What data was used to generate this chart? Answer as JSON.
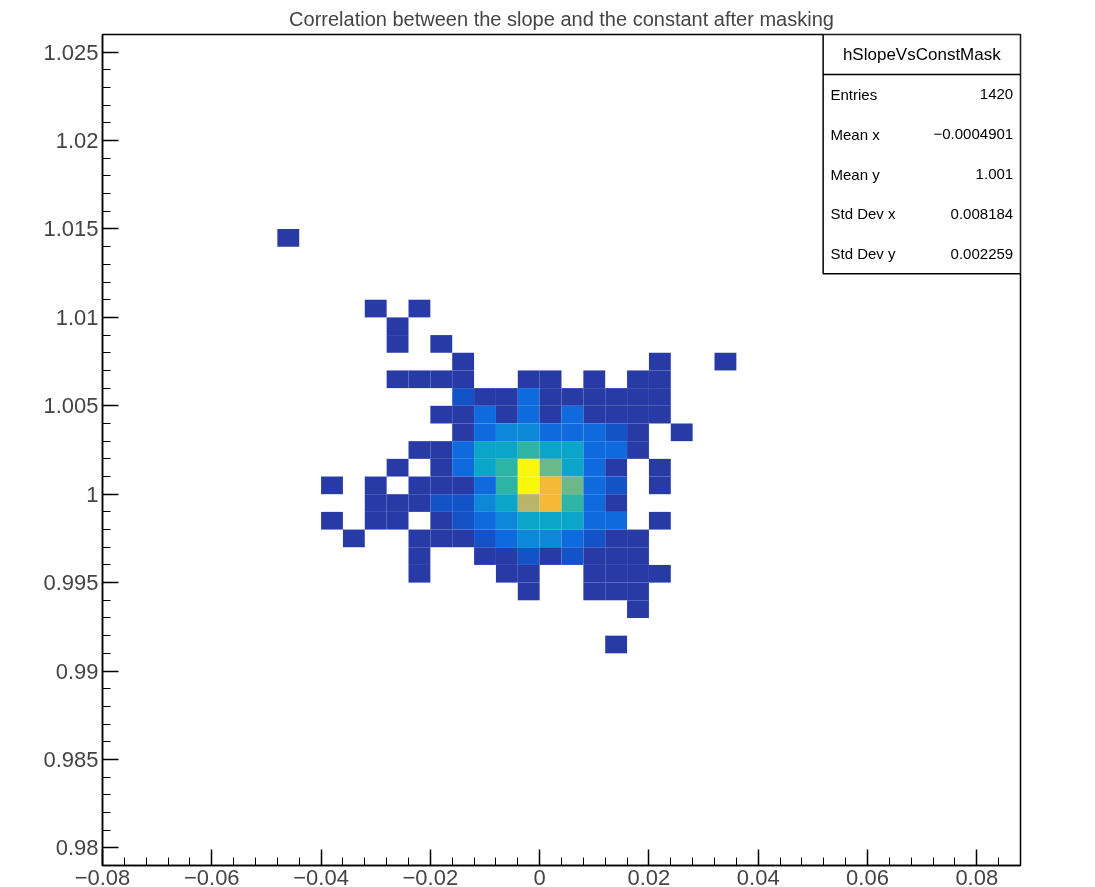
{
  "chart_data": {
    "type": "scatter",
    "title": "Correlation between the slope and the constant after masking",
    "marker": "square",
    "xlim": [
      -0.08,
      0.088
    ],
    "ylim": [
      0.979,
      1.026
    ],
    "xticks": [
      {
        "value": -0.08,
        "label": "−0.08"
      },
      {
        "value": -0.06,
        "label": "−0.06"
      },
      {
        "value": -0.04,
        "label": "−0.04"
      },
      {
        "value": -0.02,
        "label": "−0.02"
      },
      0,
      0.02,
      0.04,
      0.06,
      0.08
    ],
    "yticks": [
      0.98,
      0.985,
      0.99,
      0.995,
      1,
      1.005,
      1.01,
      1.015,
      1.02,
      1.025
    ],
    "annotations": [
      "hSlopeVsConstMask",
      "Entries",
      "1420",
      "Mean x",
      "−0.0004901",
      "Mean y",
      "1.001",
      "Std Dev x",
      "0.008184",
      "Std Dev y",
      "0.002259"
    ],
    "x": [
      -0.046,
      -0.03,
      -0.022,
      -0.026,
      -0.026,
      -0.018,
      -0.014,
      0.022,
      0.034,
      -0.026,
      -0.022,
      -0.018,
      -0.014,
      -0.002,
      0.002,
      0.01,
      0.018,
      0.022,
      -0.014,
      -0.01,
      -0.006,
      -0.002,
      0.002,
      0.006,
      0.01,
      0.014,
      0.018,
      0.022,
      -0.018,
      -0.014,
      -0.01,
      -0.006,
      -0.002,
      0.002,
      0.006,
      0.01,
      0.014,
      0.018,
      0.022,
      -0.014,
      -0.01,
      -0.006,
      -0.002,
      0.002,
      0.006,
      0.01,
      0.014,
      0.018,
      0.026,
      -0.022,
      -0.018,
      -0.014,
      -0.01,
      -0.006,
      -0.002,
      0.002,
      0.006,
      0.01,
      0.014,
      0.018,
      -0.026,
      -0.018,
      -0.014,
      -0.01,
      -0.006,
      -0.002,
      0.002,
      0.006,
      0.01,
      0.014,
      0.022,
      -0.038,
      -0.03,
      -0.022,
      -0.018,
      -0.014,
      -0.01,
      -0.006,
      -0.002,
      0.002,
      0.006,
      0.01,
      0.014,
      0.022,
      -0.03,
      -0.026,
      -0.022,
      -0.018,
      -0.014,
      -0.01,
      -0.006,
      -0.002,
      0.002,
      0.006,
      0.01,
      0.014,
      -0.038,
      -0.03,
      -0.026,
      -0.018,
      -0.014,
      -0.01,
      -0.006,
      -0.002,
      0.002,
      0.006,
      0.01,
      0.014,
      0.022,
      -0.034,
      -0.022,
      -0.018,
      -0.014,
      -0.01,
      -0.006,
      -0.002,
      0.002,
      0.006,
      0.01,
      0.014,
      0.018,
      -0.022,
      -0.01,
      -0.006,
      -0.002,
      0.002,
      0.006,
      0.01,
      0.014,
      0.018,
      -0.022,
      -0.006,
      -0.002,
      0.01,
      0.014,
      0.018,
      0.022,
      -0.002,
      0.01,
      0.014,
      0.018,
      0.018,
      0.014
    ],
    "values": [
      1.0145,
      1.0105,
      1.0105,
      1.0095,
      1.0085,
      1.0085,
      1.0075,
      1.0075,
      1.0075,
      1.0065,
      1.0065,
      1.0065,
      1.0065,
      1.0065,
      1.0065,
      1.0065,
      1.0065,
      1.0065,
      1.0055,
      1.0055,
      1.0055,
      1.0055,
      1.0055,
      1.0055,
      1.0055,
      1.0055,
      1.0055,
      1.0055,
      1.0045,
      1.0045,
      1.0045,
      1.0045,
      1.0045,
      1.0045,
      1.0045,
      1.0045,
      1.0045,
      1.0045,
      1.0045,
      1.0035,
      1.0035,
      1.0035,
      1.0035,
      1.0035,
      1.0035,
      1.0035,
      1.0035,
      1.0035,
      1.0035,
      1.0025,
      1.0025,
      1.0025,
      1.0025,
      1.0025,
      1.0025,
      1.0025,
      1.0025,
      1.0025,
      1.0025,
      1.0025,
      1.0015,
      1.0015,
      1.0015,
      1.0015,
      1.0015,
      1.0015,
      1.0015,
      1.0015,
      1.0015,
      1.0015,
      1.0015,
      1.0005,
      1.0005,
      1.0005,
      1.0005,
      1.0005,
      1.0005,
      1.0005,
      1.0005,
      1.0005,
      1.0005,
      1.0005,
      1.0005,
      1.0005,
      0.9995,
      0.9995,
      0.9995,
      0.9995,
      0.9995,
      0.9995,
      0.9995,
      0.9995,
      0.9995,
      0.9995,
      0.9995,
      0.9995,
      0.9985,
      0.9985,
      0.9985,
      0.9985,
      0.9985,
      0.9985,
      0.9985,
      0.9985,
      0.9985,
      0.9985,
      0.9985,
      0.9985,
      0.9985,
      0.9975,
      0.9975,
      0.9975,
      0.9975,
      0.9975,
      0.9975,
      0.9975,
      0.9975,
      0.9975,
      0.9975,
      0.9975,
      0.9975,
      0.9965,
      0.9965,
      0.9965,
      0.9965,
      0.9965,
      0.9965,
      0.9965,
      0.9965,
      0.9965,
      0.9955,
      0.9955,
      0.9955,
      0.9955,
      0.9955,
      0.9955,
      0.9955,
      0.9945,
      0.9945,
      0.9945,
      0.9945,
      0.9935,
      0.9915
    ],
    "colors": [
      "#283aa6",
      "#283aa6",
      "#283aa6",
      "#283aa6",
      "#283aa6",
      "#283aa6",
      "#283aa6",
      "#283aa6",
      "#283aa6",
      "#283aa6",
      "#283aa6",
      "#283aa6",
      "#283aa6",
      "#283aa6",
      "#283aa6",
      "#283aa6",
      "#283aa6",
      "#283aa6",
      "#1452c8",
      "#283aa6",
      "#283aa6",
      "#0f6ade",
      "#283aa6",
      "#283aa6",
      "#283aa6",
      "#283aa6",
      "#283aa6",
      "#283aa6",
      "#283aa6",
      "#283aa6",
      "#0f6ade",
      "#283aa6",
      "#0f6ade",
      "#283aa6",
      "#0f6ade",
      "#283aa6",
      "#283aa6",
      "#283aa6",
      "#283aa6",
      "#283aa6",
      "#0f6ade",
      "#0d88d8",
      "#0d88d8",
      "#0f6ade",
      "#0f6ade",
      "#0f6ade",
      "#1452c8",
      "#283aa6",
      "#283aa6",
      "#283aa6",
      "#283aa6",
      "#0f6ade",
      "#0aa5c8",
      "#0aa5c8",
      "#2db4a4",
      "#0aa5c8",
      "#0aa5c8",
      "#0f6ade",
      "#0f6ade",
      "#283aa6",
      "#283aa6",
      "#283aa6",
      "#0f6ade",
      "#0aa5c8",
      "#2db4a4",
      "#f8f808",
      "#6cb888",
      "#0aa5c8",
      "#0f6ade",
      "#283aa6",
      "#283aa6",
      "#283aa6",
      "#283aa6",
      "#283aa6",
      "#283aa6",
      "#283aa6",
      "#0f6ade",
      "#2db4a4",
      "#f8f808",
      "#f5b93a",
      "#6cb888",
      "#0f6ade",
      "#1452c8",
      "#283aa6",
      "#283aa6",
      "#283aa6",
      "#283aa6",
      "#1452c8",
      "#1452c8",
      "#0d88d8",
      "#0aa5c8",
      "#b8b46a",
      "#f5b93a",
      "#2db4a4",
      "#0f6ade",
      "#283aa6",
      "#283aa6",
      "#283aa6",
      "#283aa6",
      "#283aa6",
      "#1452c8",
      "#0f6ade",
      "#0d88d8",
      "#0aa5c8",
      "#0aa5c8",
      "#0aa5c8",
      "#0f6ade",
      "#0f6ade",
      "#283aa6",
      "#283aa6",
      "#283aa6",
      "#283aa6",
      "#283aa6",
      "#1452c8",
      "#0f6ade",
      "#0d88d8",
      "#0d88d8",
      "#0f6ade",
      "#1452c8",
      "#283aa6",
      "#283aa6",
      "#283aa6",
      "#283aa6",
      "#283aa6",
      "#1452c8",
      "#283aa6",
      "#1452c8",
      "#283aa6",
      "#283aa6",
      "#283aa6",
      "#283aa6",
      "#283aa6",
      "#283aa6",
      "#283aa6",
      "#283aa6",
      "#283aa6",
      "#283aa6",
      "#283aa6",
      "#283aa6",
      "#283aa6",
      "#283aa6",
      "#283aa6",
      "#283aa6"
    ]
  }
}
